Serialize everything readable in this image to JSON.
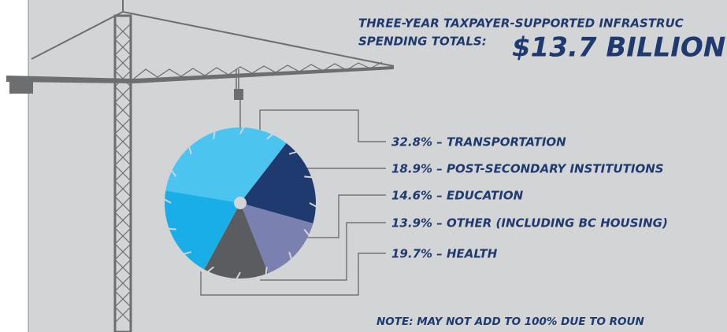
{
  "chart_data": {
    "type": "pie",
    "title": "THREE-YEAR TAXPAYER-SUPPORTED INFRASTRUC",
    "subtitle": "SPENDING TOTALS:",
    "total": "$13.7 BILLION",
    "note": "NOTE: MAY NOT ADD TO 100% DUE TO ROUN",
    "values": [
      32.8,
      18.9,
      14.6,
      13.9,
      19.7
    ],
    "value_labels": [
      "32.8% – TRANSPORTATION",
      "18.9% – POST-SECONDARY INSTITUTIONS",
      "14.6% – EDUCATION",
      "13.9% – OTHER (INCLUDING BC HOUSING)",
      "19.7% – HEALTH"
    ],
    "colors": [
      "#4cc4f0",
      "#1e3a6e",
      "#7a80b0",
      "#5b5c5f",
      "#1aaee8"
    ]
  }
}
